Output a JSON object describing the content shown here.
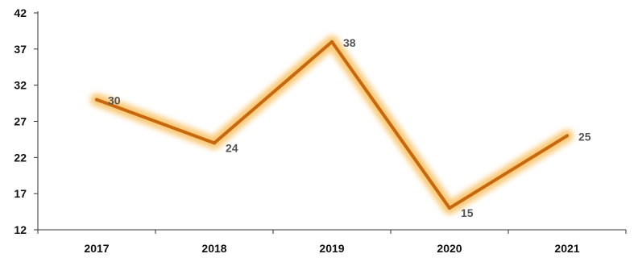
{
  "chart_data": {
    "type": "line",
    "categories": [
      "2017",
      "2018",
      "2019",
      "2020",
      "2021"
    ],
    "series": [
      {
        "values": [
          30,
          24,
          38,
          15,
          25
        ],
        "color": "#C8680E",
        "glow_color": "#F7B84B"
      }
    ],
    "data_labels": [
      "30",
      "24",
      "38",
      "15",
      "25"
    ],
    "y_ticks": [
      "12",
      "17",
      "22",
      "27",
      "32",
      "37",
      "42"
    ],
    "ylim": [
      12,
      42
    ],
    "grid": false,
    "legend": "none",
    "axis_color": "#333333",
    "label_color": "#555555"
  }
}
